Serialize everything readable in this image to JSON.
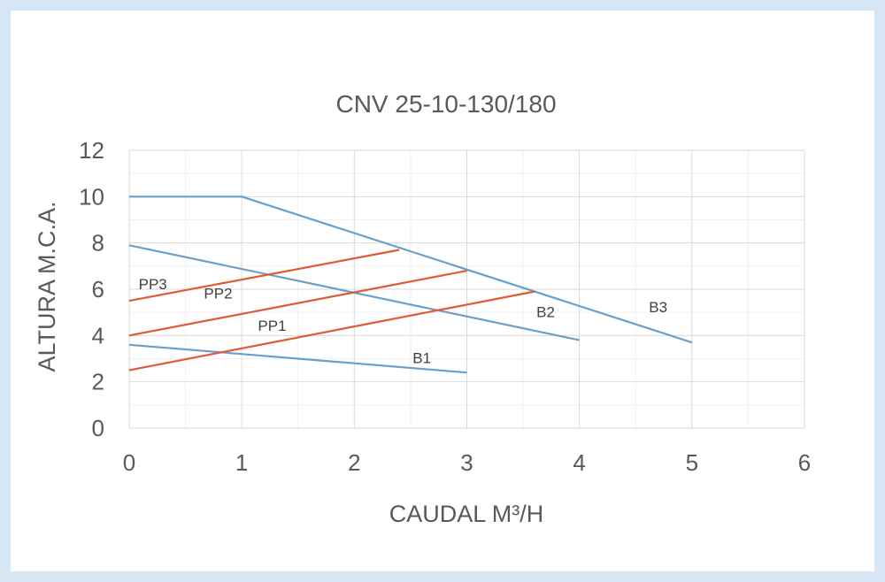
{
  "chart_data": {
    "type": "line",
    "title": "CNV 25-10-130/180",
    "xlabel": "CAUDAL M³/H",
    "ylabel": "ALTURA M.C.A.",
    "xlim": [
      0,
      6
    ],
    "ylim": [
      0,
      12
    ],
    "x_ticks": [
      "0",
      "1",
      "2",
      "3",
      "4",
      "5",
      "6"
    ],
    "y_ticks": [
      "0",
      "2",
      "4",
      "6",
      "8",
      "10",
      "12"
    ],
    "grid": true,
    "minor_grid": true,
    "legend": "none",
    "series": [
      {
        "name": "B1",
        "color": "#6a9fca",
        "points": [
          [
            0,
            3.6
          ],
          [
            3,
            2.4
          ]
        ]
      },
      {
        "name": "B2",
        "color": "#6a9fca",
        "points": [
          [
            0,
            7.9
          ],
          [
            4,
            3.8
          ]
        ]
      },
      {
        "name": "B3",
        "color": "#6a9fca",
        "points": [
          [
            0,
            10
          ],
          [
            1,
            10
          ],
          [
            5,
            3.7
          ]
        ]
      },
      {
        "name": "PP1",
        "color": "#e05a33",
        "points": [
          [
            0,
            2.5
          ],
          [
            3.6,
            5.9
          ]
        ]
      },
      {
        "name": "PP2",
        "color": "#e05a33",
        "points": [
          [
            0,
            4.0
          ],
          [
            3,
            6.8
          ]
        ]
      },
      {
        "name": "PP3",
        "color": "#e05a33",
        "points": [
          [
            0,
            5.5
          ],
          [
            2.4,
            7.7
          ]
        ]
      }
    ]
  }
}
